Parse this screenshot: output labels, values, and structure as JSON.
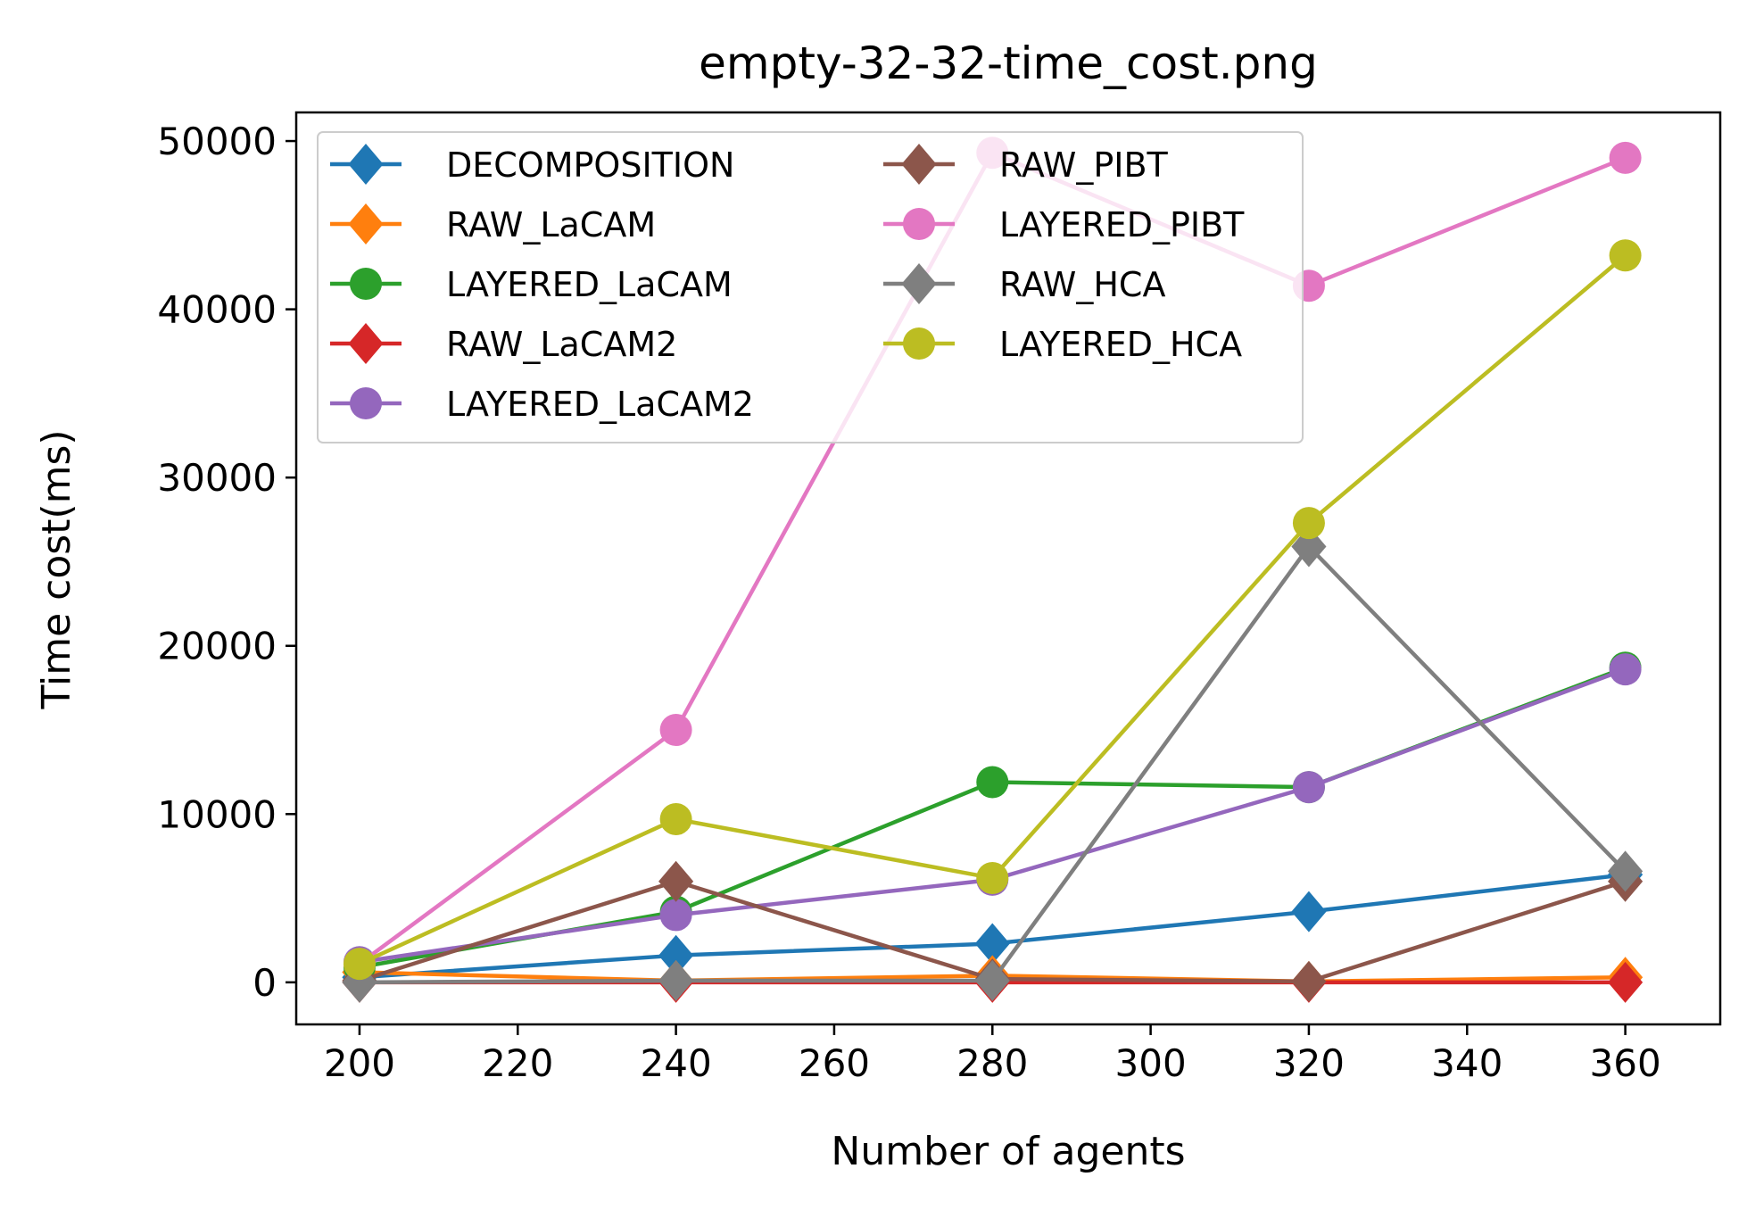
{
  "chart_data": {
    "type": "line",
    "title": "empty-32-32-time_cost.png",
    "xlabel": "Number of agents",
    "ylabel": "Time cost(ms)",
    "x": [
      200,
      240,
      280,
      320,
      360
    ],
    "xlim": [
      192,
      372
    ],
    "ylim": [
      -2500,
      51700
    ],
    "xticks": [
      200,
      220,
      240,
      260,
      280,
      300,
      320,
      340,
      360
    ],
    "yticks": [
      0,
      10000,
      20000,
      30000,
      40000,
      50000
    ],
    "grid": false,
    "legend_position": "top-left",
    "legend_columns": 2,
    "series": [
      {
        "name": "DECOMPOSITION",
        "color": "#1f77b4",
        "marker": "diamond",
        "values": [
          300,
          1600,
          2300,
          4200,
          6400
        ]
      },
      {
        "name": "RAW_LaCAM",
        "color": "#ff7f0e",
        "marker": "diamond",
        "values": [
          600,
          100,
          400,
          50,
          300
        ]
      },
      {
        "name": "LAYERED_LaCAM",
        "color": "#2ca02c",
        "marker": "circle",
        "values": [
          900,
          4200,
          11900,
          11600,
          18700
        ]
      },
      {
        "name": "RAW_LaCAM2",
        "color": "#d62728",
        "marker": "diamond",
        "values": [
          0,
          0,
          0,
          0,
          0
        ]
      },
      {
        "name": "LAYERED_LaCAM2",
        "color": "#9467bd",
        "marker": "circle",
        "values": [
          1200,
          4000,
          6100,
          11600,
          18600
        ]
      },
      {
        "name": "RAW_PIBT",
        "color": "#8c564b",
        "marker": "diamond",
        "values": [
          100,
          6000,
          200,
          50,
          6000
        ]
      },
      {
        "name": "LAYERED_PIBT",
        "color": "#e377c2",
        "marker": "circle",
        "values": [
          1100,
          15000,
          49300,
          41400,
          49000
        ]
      },
      {
        "name": "RAW_HCA",
        "color": "#7f7f7f",
        "marker": "diamond",
        "values": [
          0,
          100,
          100,
          25900,
          6600
        ]
      },
      {
        "name": "LAYERED_HCA",
        "color": "#bcbd22",
        "marker": "circle",
        "values": [
          1100,
          9700,
          6200,
          27300,
          43200
        ]
      }
    ]
  }
}
